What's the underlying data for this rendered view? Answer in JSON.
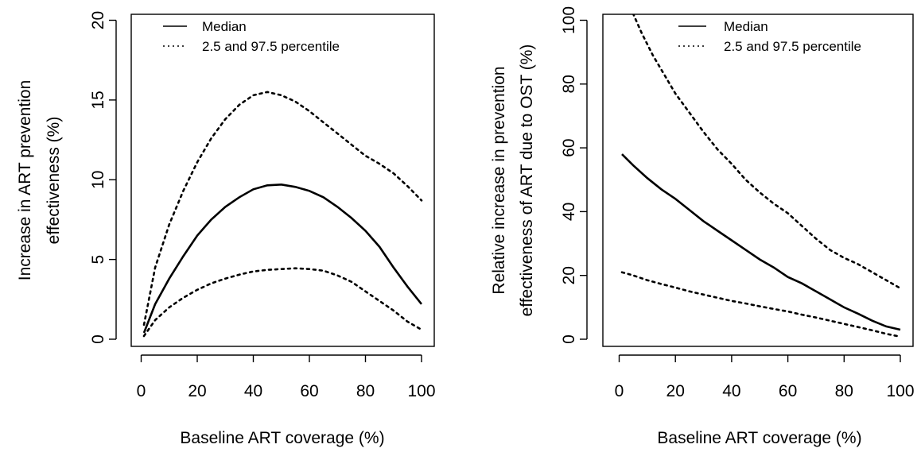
{
  "chart_data": [
    {
      "type": "line",
      "xlabel": "Baseline ART coverage (%)",
      "ylabel_lines": [
        "Increase in ART prevention",
        "effectiveness (%)"
      ],
      "xlim": [
        0,
        100
      ],
      "ylim": [
        0,
        20
      ],
      "xticks": [
        0,
        20,
        40,
        60,
        80,
        100
      ],
      "yticks": [
        0,
        5,
        10,
        15,
        20
      ],
      "legend": {
        "position": "top-left",
        "entries": [
          {
            "label": "Median",
            "style": "solid"
          },
          {
            "label": "2.5 and 97.5 percentile",
            "style": "dotted"
          }
        ]
      },
      "series": [
        {
          "name": "Median",
          "style": "solid",
          "x": [
            1,
            5,
            10,
            15,
            20,
            25,
            30,
            35,
            40,
            45,
            50,
            55,
            60,
            65,
            70,
            75,
            80,
            85,
            90,
            95,
            100
          ],
          "values": [
            0.4,
            2.2,
            3.8,
            5.2,
            6.5,
            7.5,
            8.3,
            8.9,
            9.4,
            9.65,
            9.7,
            9.55,
            9.3,
            8.9,
            8.3,
            7.6,
            6.8,
            5.8,
            4.5,
            3.3,
            2.2
          ]
        },
        {
          "name": "97.5 percentile",
          "style": "dotted",
          "x": [
            1,
            5,
            10,
            15,
            20,
            25,
            30,
            35,
            40,
            45,
            50,
            55,
            60,
            65,
            70,
            75,
            80,
            85,
            90,
            95,
            100
          ],
          "values": [
            0.9,
            4.5,
            7.2,
            9.3,
            11.1,
            12.6,
            13.8,
            14.7,
            15.3,
            15.5,
            15.3,
            14.9,
            14.3,
            13.6,
            12.9,
            12.2,
            11.5,
            11.0,
            10.4,
            9.6,
            8.7
          ]
        },
        {
          "name": "2.5 percentile",
          "style": "dotted",
          "x": [
            1,
            5,
            10,
            15,
            20,
            25,
            30,
            35,
            40,
            45,
            50,
            55,
            60,
            65,
            70,
            75,
            80,
            85,
            90,
            95,
            100
          ],
          "values": [
            0.2,
            1.2,
            2.0,
            2.6,
            3.1,
            3.5,
            3.8,
            4.05,
            4.25,
            4.35,
            4.4,
            4.45,
            4.4,
            4.3,
            4.0,
            3.6,
            3.0,
            2.4,
            1.8,
            1.1,
            0.6
          ]
        }
      ]
    },
    {
      "type": "line",
      "xlabel": "Baseline ART coverage (%)",
      "ylabel_lines": [
        "Relative increase in prevention",
        "effectiveness of ART due to OST (%)"
      ],
      "xlim": [
        0,
        100
      ],
      "ylim": [
        0,
        100
      ],
      "xticks": [
        0,
        20,
        40,
        60,
        80,
        100
      ],
      "yticks": [
        0,
        20,
        40,
        60,
        80,
        100
      ],
      "legend": {
        "position": "top-right",
        "entries": [
          {
            "label": "Median",
            "style": "solid"
          },
          {
            "label": "2.5 and 97.5 percentile",
            "style": "dotted"
          }
        ]
      },
      "series": [
        {
          "name": "Median",
          "style": "solid",
          "x": [
            1,
            5,
            10,
            15,
            20,
            25,
            30,
            35,
            40,
            45,
            50,
            55,
            60,
            65,
            70,
            75,
            80,
            85,
            90,
            95,
            100
          ],
          "values": [
            58,
            54.5,
            50.5,
            47,
            44,
            40.5,
            37,
            34,
            31,
            28,
            25,
            22.5,
            19.5,
            17.5,
            15,
            12.5,
            10,
            8,
            5.8,
            4,
            3
          ]
        },
        {
          "name": "97.5 percentile",
          "style": "dotted",
          "x": [
            4,
            8,
            12,
            16,
            20,
            25,
            30,
            35,
            40,
            45,
            50,
            55,
            60,
            65,
            70,
            75,
            80,
            85,
            90,
            95,
            100
          ],
          "values": [
            104,
            96,
            89,
            83,
            77,
            71,
            65,
            59.5,
            55,
            50,
            46,
            42.5,
            39.5,
            35.5,
            31.5,
            28,
            25.5,
            23.5,
            21,
            18.5,
            16
          ]
        },
        {
          "name": "2.5 percentile",
          "style": "dotted",
          "x": [
            1,
            5,
            10,
            15,
            20,
            25,
            30,
            35,
            40,
            45,
            50,
            55,
            60,
            65,
            70,
            75,
            80,
            85,
            90,
            95,
            100
          ],
          "values": [
            21,
            20,
            18.5,
            17.3,
            16.2,
            15,
            14,
            13,
            12,
            11.2,
            10.3,
            9.5,
            8.7,
            7.7,
            6.8,
            5.8,
            4.8,
            3.8,
            2.8,
            1.7,
            0.8
          ]
        }
      ]
    }
  ]
}
